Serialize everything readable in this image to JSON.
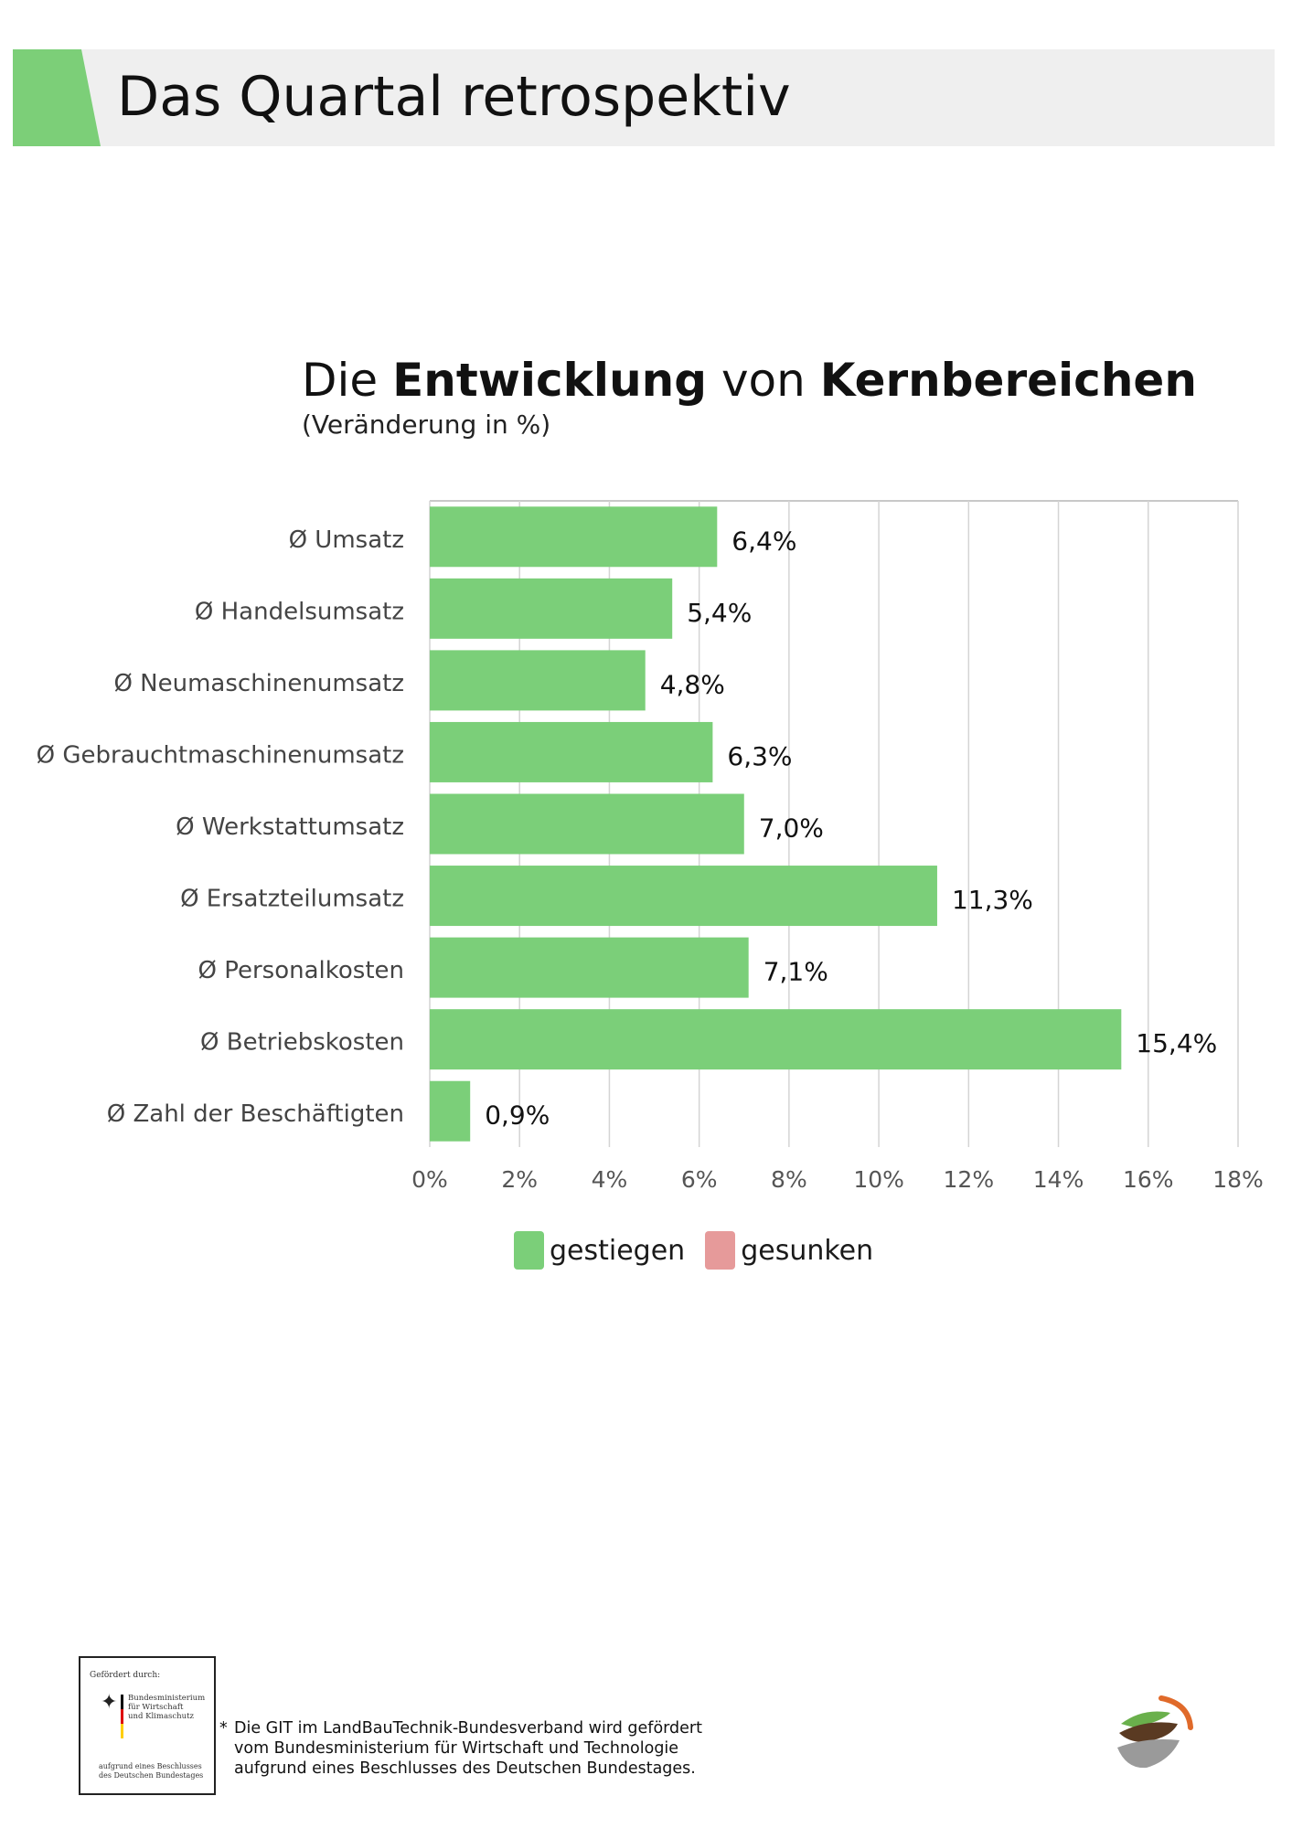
{
  "header": {
    "title": "Das Quartal retrospektiv"
  },
  "chart_data": {
    "type": "bar",
    "orientation": "horizontal",
    "title_parts": [
      {
        "text": "Die ",
        "bold": false
      },
      {
        "text": "Entwicklung",
        "bold": true
      },
      {
        "text": " von ",
        "bold": false
      },
      {
        "text": "Kernbereichen",
        "bold": true
      }
    ],
    "subtitle": "(Veränderung in %)",
    "categories": [
      "Ø Umsatz",
      "Ø Handelsumsatz",
      "Ø Neumaschinenumsatz",
      "Ø Gebrauchtmaschinenumsatz",
      "Ø Werkstattumsatz",
      "Ø Ersatzteilumsatz",
      "Ø Personalkosten",
      "Ø Betriebskosten",
      "Ø Zahl der Beschäftigten"
    ],
    "values": [
      6.4,
      5.4,
      4.8,
      6.3,
      7.0,
      11.3,
      7.1,
      15.4,
      0.9
    ],
    "value_labels": [
      "6,4%",
      "5,4%",
      "4,8%",
      "6,3%",
      "7,0%",
      "11,3%",
      "7,1%",
      "15,4%",
      "0,9%"
    ],
    "xlim": [
      0,
      18
    ],
    "x_ticks": [
      0,
      2,
      4,
      6,
      8,
      10,
      12,
      14,
      16,
      18
    ],
    "x_tick_labels": [
      "0%",
      "2%",
      "4%",
      "6%",
      "8%",
      "10%",
      "12%",
      "14%",
      "16%",
      "18%"
    ],
    "grid": true,
    "legend": [
      {
        "label": "gestiegen",
        "color": "#7bcf79"
      },
      {
        "label": "gesunken",
        "color": "#e69a9a"
      }
    ],
    "legend_position": "bottom",
    "bar_color": "#7bcf79"
  },
  "funding": {
    "heading": "Gefördert durch:",
    "ministry_lines": [
      "Bundesministerium",
      "für Wirtschaft",
      "und Klimaschutz"
    ],
    "footer_lines": [
      "aufgrund eines Beschlusses",
      "des Deutschen Bundestages"
    ]
  },
  "footnote": {
    "star": "*",
    "lines": [
      "Die GIT im LandBauTechnik-Bundesverband wird gefördert",
      "vom Bundesministerium für Wirtschaft und Technologie",
      "aufgrund eines Beschlusses des Deutschen Bundestages."
    ]
  },
  "colors": {
    "accent": "#7ccf78",
    "header_bg": "#efefef",
    "logo_orange": "#e06a2a",
    "logo_green": "#6ab04c",
    "logo_brown": "#5a3a22",
    "logo_gray": "#9a9a9a"
  }
}
